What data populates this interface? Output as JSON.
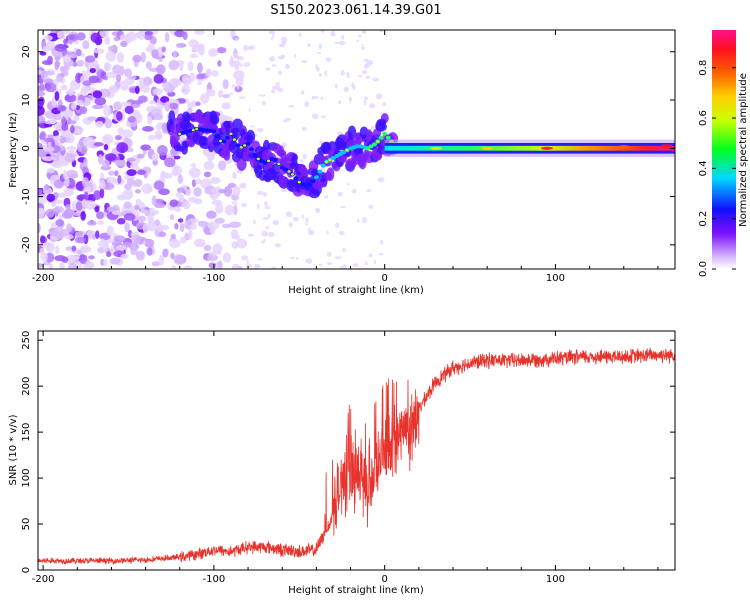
{
  "title": "S150.2023.061.14.39.G01",
  "colors": {
    "snr_line": "#e8332c",
    "axis": "#000000",
    "background": "#ffffff"
  },
  "chart_data": [
    {
      "type": "heatmap",
      "name": "spectrogram",
      "xlabel": "Height of straight line (km)",
      "ylabel": "Frequency (Hz)",
      "xlim": [
        -203,
        170
      ],
      "ylim": [
        -25,
        24.5
      ],
      "xticks": [
        -200,
        -100,
        0,
        100
      ],
      "yticks": [
        -20,
        -10,
        0,
        10,
        20
      ],
      "colorbar": {
        "label": "Normalized spectral amplitude",
        "range": [
          0,
          0.95
        ],
        "ticks": [
          0.0,
          0.2,
          0.4,
          0.6,
          0.8
        ]
      },
      "ridge": {
        "description": "dominant frequency track",
        "x": [
          -120,
          -110,
          -100,
          -95,
          -90,
          -85,
          -80,
          -75,
          -70,
          -65,
          -60,
          -55,
          -50,
          -45,
          -40,
          -35,
          -30,
          -25,
          -20,
          -15,
          -10,
          -5,
          0,
          5,
          10,
          20,
          40,
          60,
          80,
          100,
          120,
          140,
          160,
          170
        ],
        "y": [
          3,
          4,
          3.5,
          1,
          3,
          0,
          1,
          -2,
          -3,
          -2,
          -4,
          -5,
          -7,
          -8,
          -6,
          -3,
          -2,
          -1,
          0,
          0.5,
          0,
          1,
          3,
          1,
          0.5,
          0,
          0,
          0,
          0,
          0,
          0,
          0.3,
          0.5,
          0.5
        ]
      }
    },
    {
      "type": "line",
      "name": "snr",
      "xlabel": "Height of straight line (km)",
      "ylabel": "SNR (10 * v/v)",
      "xlim": [
        -203,
        170
      ],
      "ylim": [
        0,
        260
      ],
      "xticks": [
        -200,
        -100,
        0,
        100
      ],
      "yticks": [
        0,
        50,
        100,
        150,
        200,
        250
      ],
      "series": [
        {
          "name": "SNR",
          "x": [
            -203,
            -180,
            -160,
            -140,
            -120,
            -110,
            -100,
            -90,
            -80,
            -70,
            -60,
            -50,
            -40,
            -30,
            -25,
            -20,
            -15,
            -10,
            -5,
            0,
            5,
            10,
            15,
            20,
            30,
            40,
            50,
            60,
            80,
            100,
            120,
            140,
            160,
            170
          ],
          "y": [
            10,
            10,
            10,
            11,
            14,
            17,
            22,
            20,
            25,
            25,
            22,
            20,
            22,
            60,
            95,
            110,
            100,
            80,
            110,
            130,
            140,
            150,
            145,
            175,
            205,
            220,
            225,
            228,
            228,
            230,
            232,
            232,
            234,
            234
          ]
        }
      ]
    }
  ]
}
